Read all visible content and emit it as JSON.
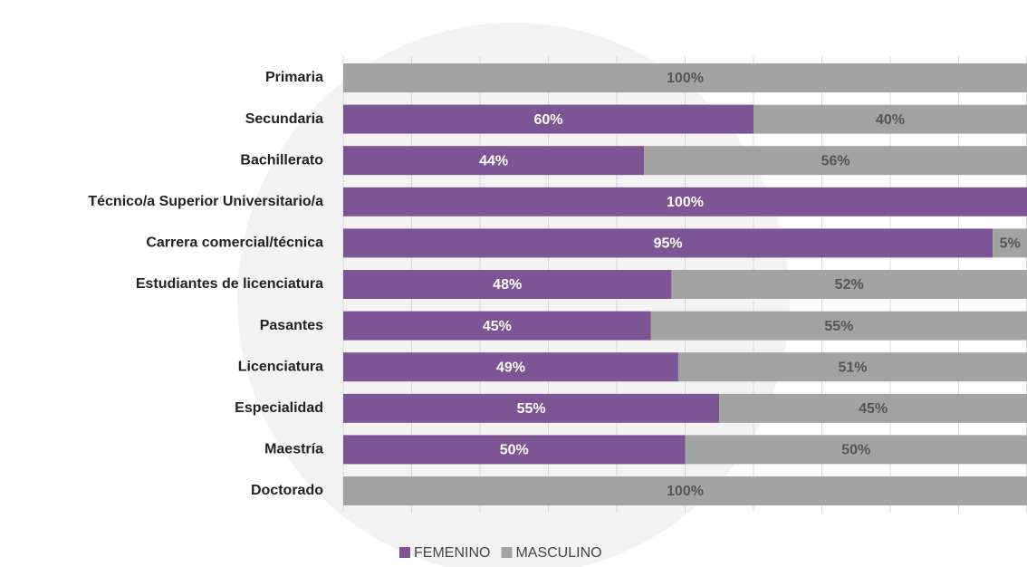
{
  "chart_data": {
    "type": "stacked-barh",
    "categories": [
      "Primaria",
      "Secundaria",
      "Bachillerato",
      "Técnico/a Superior Universitario/a",
      "Carrera comercial/técnica",
      "Estudiantes de licenciatura",
      "Pasantes",
      "Licenciatura",
      "Especialidad",
      "Maestría",
      "Doctorado"
    ],
    "series": [
      {
        "name": "FEMENINO",
        "color": "#7e5594",
        "label_color": "#ffffff",
        "values": [
          0,
          60,
          44,
          100,
          95,
          48,
          45,
          49,
          55,
          50,
          0
        ],
        "value_labels": [
          null,
          "60%",
          "44%",
          "100%",
          "95%",
          "48%",
          "45%",
          "49%",
          "55%",
          "50%",
          null
        ]
      },
      {
        "name": "MASCULINO",
        "color": "#a3a3a3",
        "label_color": "#555555",
        "values": [
          100,
          40,
          56,
          0,
          5,
          52,
          55,
          51,
          45,
          50,
          100
        ],
        "value_labels": [
          "100%",
          "40%",
          "56%",
          null,
          "5%",
          "52%",
          "55%",
          "51%",
          "45%",
          "50%",
          "100%"
        ]
      }
    ],
    "xlim": [
      0,
      100
    ],
    "xticks": [
      0,
      10,
      20,
      30,
      40,
      50,
      60,
      70,
      80,
      90,
      100
    ],
    "grid": true,
    "legend": "bottom"
  }
}
